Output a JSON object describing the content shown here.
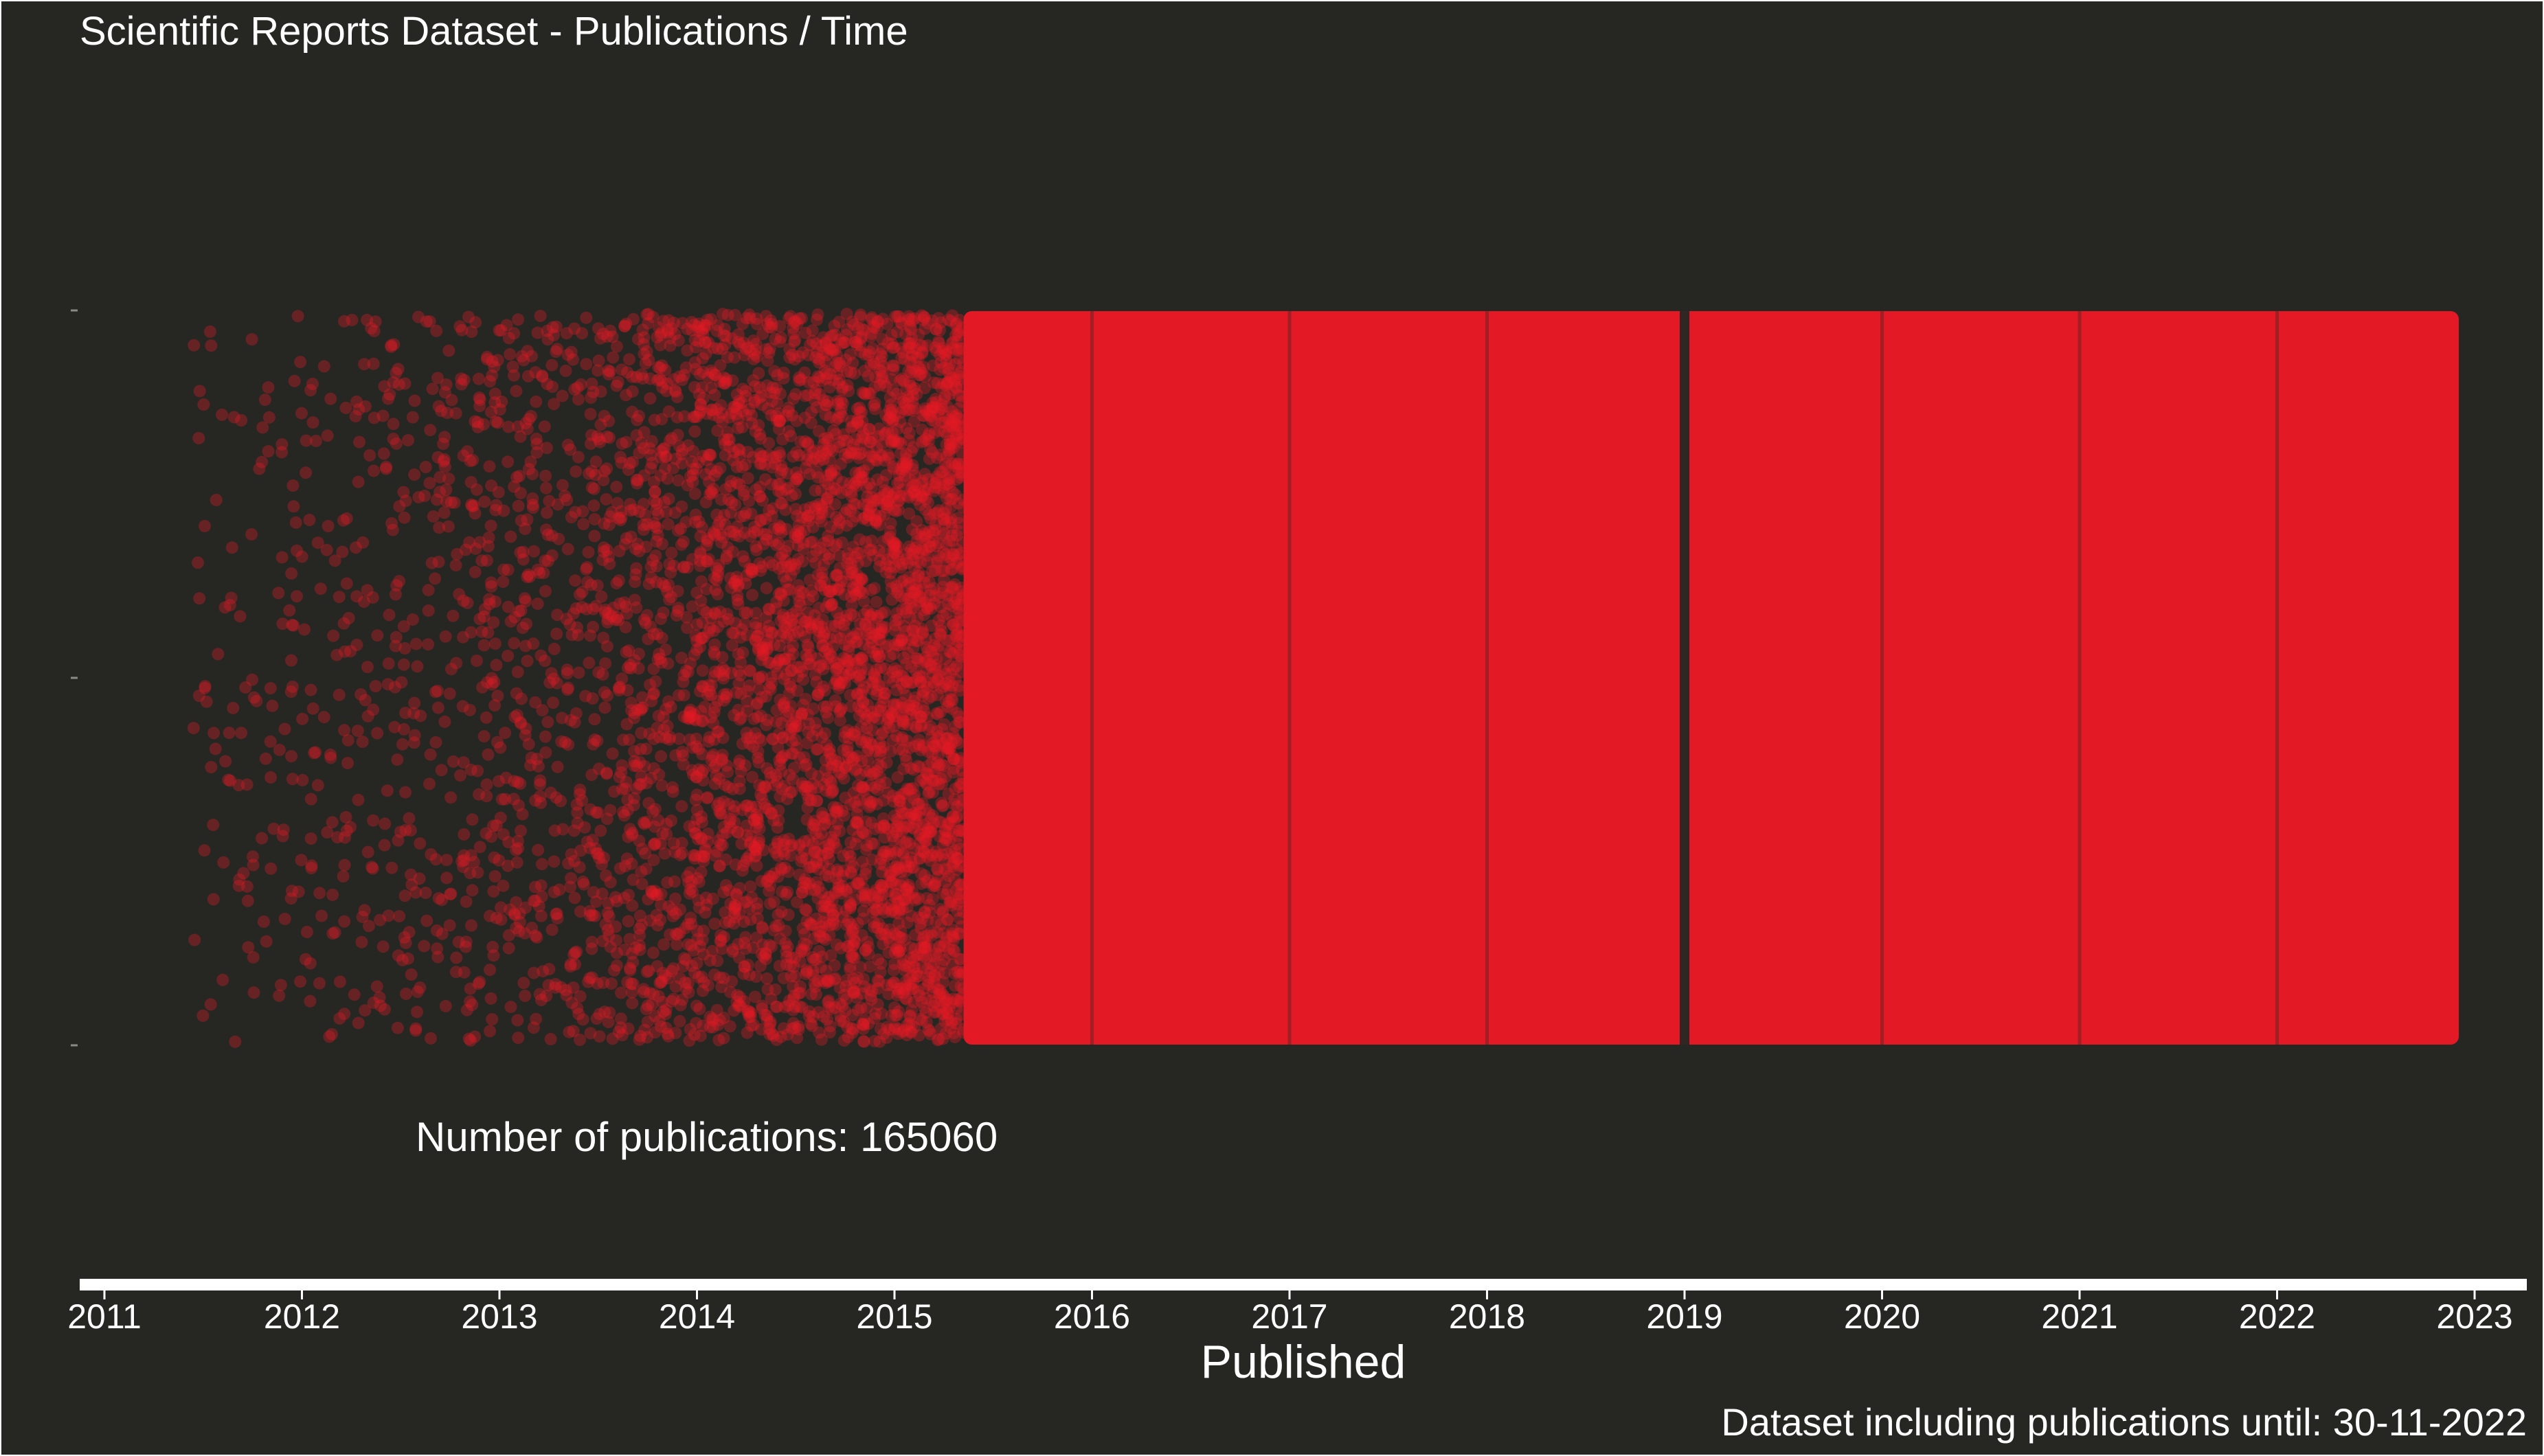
{
  "chart_data": {
    "type": "scatter",
    "title": "Scientific Reports Dataset - Publications / Time",
    "xlabel": "Published",
    "ylabel": "",
    "annotation": "Number of publications: 165060",
    "caption": "Dataset including publications until: 30-11-2022",
    "x_ticks": [
      "2011",
      "2012",
      "2013",
      "2014",
      "2015",
      "2016",
      "2017",
      "2018",
      "2019",
      "2020",
      "2021",
      "2022",
      "2023"
    ],
    "xlim": [
      2011,
      2023
    ],
    "x_data_range": [
      2011.45,
      2022.92
    ],
    "jitter": "random vertical jitter within a band (y has no meaning)",
    "grid": false,
    "legend": "none",
    "point_color": "#e31a26",
    "background": "#262723",
    "density_by_year": [
      {
        "year": 2011,
        "level": 0.05
      },
      {
        "year": 2012,
        "level": 0.08
      },
      {
        "year": 2013,
        "level": 0.25
      },
      {
        "year": 2014,
        "level": 0.45
      },
      {
        "year": 2015,
        "level": 0.85
      },
      {
        "year": 2016,
        "level": 1.0
      },
      {
        "year": 2017,
        "level": 1.0
      },
      {
        "year": 2018,
        "level": 1.0
      },
      {
        "year": 2019,
        "level": 1.0
      },
      {
        "year": 2020,
        "level": 1.0
      },
      {
        "year": 2021,
        "level": 1.0
      },
      {
        "year": 2022,
        "level": 1.0
      }
    ]
  }
}
